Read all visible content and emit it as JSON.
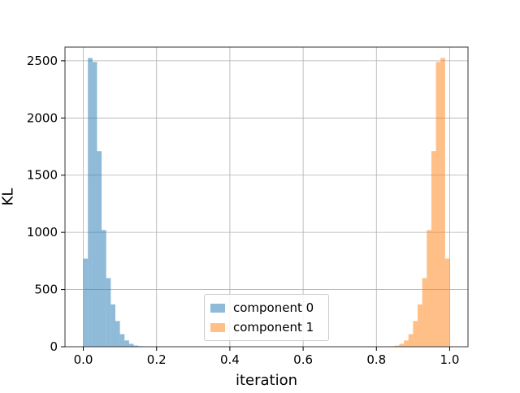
{
  "chart_data": {
    "type": "histogram",
    "title": "",
    "xlabel": "iteration",
    "ylabel": "KL",
    "xlim": [
      -0.05,
      1.05
    ],
    "ylim": [
      0,
      2620
    ],
    "xticks": [
      "0.0",
      "0.2",
      "0.4",
      "0.6",
      "0.8",
      "1.0"
    ],
    "yticks": [
      "0",
      "500",
      "1000",
      "1500",
      "2000",
      "2500"
    ],
    "grid": true,
    "legend_position": "lower-center",
    "bin_width": 0.0125,
    "series": [
      {
        "name": "component 0",
        "color": "#1f77b4",
        "alpha": 0.5,
        "bins": [
          {
            "x0": 0.0,
            "count": 770
          },
          {
            "x0": 0.0125,
            "count": 2525
          },
          {
            "x0": 0.025,
            "count": 2490
          },
          {
            "x0": 0.0375,
            "count": 1710
          },
          {
            "x0": 0.05,
            "count": 1020
          },
          {
            "x0": 0.0625,
            "count": 600
          },
          {
            "x0": 0.075,
            "count": 370
          },
          {
            "x0": 0.0875,
            "count": 225
          },
          {
            "x0": 0.1,
            "count": 110
          },
          {
            "x0": 0.1125,
            "count": 55
          },
          {
            "x0": 0.125,
            "count": 25
          },
          {
            "x0": 0.1375,
            "count": 10
          },
          {
            "x0": 0.15,
            "count": 5
          }
        ]
      },
      {
        "name": "component 1",
        "color": "#ff7f0e",
        "alpha": 0.5,
        "bins": [
          {
            "x0": 0.8375,
            "count": 5
          },
          {
            "x0": 0.85,
            "count": 10
          },
          {
            "x0": 0.8625,
            "count": 25
          },
          {
            "x0": 0.875,
            "count": 55
          },
          {
            "x0": 0.8875,
            "count": 110
          },
          {
            "x0": 0.9,
            "count": 225
          },
          {
            "x0": 0.9125,
            "count": 370
          },
          {
            "x0": 0.925,
            "count": 600
          },
          {
            "x0": 0.9375,
            "count": 1020
          },
          {
            "x0": 0.95,
            "count": 1710
          },
          {
            "x0": 0.9625,
            "count": 2490
          },
          {
            "x0": 0.975,
            "count": 2525
          },
          {
            "x0": 0.9875,
            "count": 770
          }
        ]
      }
    ]
  }
}
